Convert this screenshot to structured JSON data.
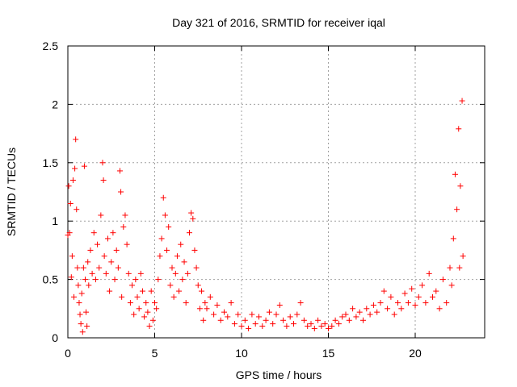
{
  "chart_data": {
    "type": "scatter",
    "title": "Day 321 of 2016, SRMTID for receiver iqal",
    "xlabel": "GPS time / hours",
    "ylabel": "SRMTID / TECUs",
    "xlim": [
      0,
      24
    ],
    "ylim": [
      0,
      2.5
    ],
    "x_ticks": [
      0,
      5,
      10,
      15,
      20
    ],
    "x_tick_labels": [
      "0",
      "5",
      "10",
      "15",
      "20"
    ],
    "y_ticks": [
      0,
      0.5,
      1,
      1.5,
      2,
      2.5
    ],
    "y_tick_labels": [
      "0",
      "0.5",
      "1",
      "1.5",
      "2",
      "2.5"
    ],
    "grid": true,
    "marker": "+",
    "color": "#ff0000",
    "series": [
      {
        "name": "SRMTID",
        "points": [
          [
            0.0,
            0.88
          ],
          [
            0.05,
            1.3
          ],
          [
            0.1,
            0.9
          ],
          [
            0.15,
            1.15
          ],
          [
            0.2,
            0.52
          ],
          [
            0.25,
            0.7
          ],
          [
            0.3,
            1.35
          ],
          [
            0.35,
            0.35
          ],
          [
            0.4,
            1.45
          ],
          [
            0.45,
            1.7
          ],
          [
            0.5,
            1.1
          ],
          [
            0.55,
            0.6
          ],
          [
            0.6,
            0.45
          ],
          [
            0.65,
            0.3
          ],
          [
            0.7,
            0.2
          ],
          [
            0.75,
            0.12
          ],
          [
            0.8,
            0.38
          ],
          [
            0.85,
            0.05
          ],
          [
            0.9,
            0.6
          ],
          [
            0.95,
            1.47
          ],
          [
            1.0,
            0.5
          ],
          [
            1.05,
            0.22
          ],
          [
            1.1,
            0.1
          ],
          [
            1.15,
            0.65
          ],
          [
            1.2,
            0.45
          ],
          [
            1.3,
            0.75
          ],
          [
            1.4,
            0.55
          ],
          [
            1.5,
            0.9
          ],
          [
            1.6,
            0.5
          ],
          [
            1.7,
            0.8
          ],
          [
            1.8,
            0.6
          ],
          [
            1.9,
            1.05
          ],
          [
            2.0,
            1.5
          ],
          [
            2.05,
            1.35
          ],
          [
            2.1,
            0.7
          ],
          [
            2.2,
            0.55
          ],
          [
            2.3,
            0.85
          ],
          [
            2.4,
            0.4
          ],
          [
            2.5,
            0.65
          ],
          [
            2.6,
            0.9
          ],
          [
            2.7,
            0.5
          ],
          [
            2.8,
            0.75
          ],
          [
            2.9,
            0.6
          ],
          [
            3.0,
            1.43
          ],
          [
            3.05,
            1.25
          ],
          [
            3.1,
            0.35
          ],
          [
            3.2,
            0.95
          ],
          [
            3.3,
            1.05
          ],
          [
            3.4,
            0.8
          ],
          [
            3.5,
            0.55
          ],
          [
            3.6,
            0.3
          ],
          [
            3.7,
            0.45
          ],
          [
            3.8,
            0.2
          ],
          [
            3.9,
            0.5
          ],
          [
            4.0,
            0.35
          ],
          [
            4.1,
            0.25
          ],
          [
            4.2,
            0.55
          ],
          [
            4.3,
            0.4
          ],
          [
            4.4,
            0.18
          ],
          [
            4.5,
            0.3
          ],
          [
            4.6,
            0.22
          ],
          [
            4.7,
            0.1
          ],
          [
            4.8,
            0.4
          ],
          [
            4.9,
            0.15
          ],
          [
            5.0,
            0.3
          ],
          [
            5.1,
            0.25
          ],
          [
            5.2,
            0.5
          ],
          [
            5.3,
            0.7
          ],
          [
            5.4,
            0.85
          ],
          [
            5.5,
            1.2
          ],
          [
            5.6,
            1.05
          ],
          [
            5.7,
            0.75
          ],
          [
            5.8,
            0.95
          ],
          [
            5.9,
            0.45
          ],
          [
            6.0,
            0.6
          ],
          [
            6.1,
            0.35
          ],
          [
            6.2,
            0.55
          ],
          [
            6.3,
            0.7
          ],
          [
            6.4,
            0.4
          ],
          [
            6.5,
            0.8
          ],
          [
            6.6,
            0.5
          ],
          [
            6.7,
            0.65
          ],
          [
            6.8,
            0.3
          ],
          [
            6.9,
            0.55
          ],
          [
            7.0,
            0.9
          ],
          [
            7.1,
            1.07
          ],
          [
            7.2,
            1.02
          ],
          [
            7.3,
            0.75
          ],
          [
            7.4,
            0.6
          ],
          [
            7.5,
            0.45
          ],
          [
            7.6,
            0.25
          ],
          [
            7.7,
            0.4
          ],
          [
            7.8,
            0.15
          ],
          [
            7.9,
            0.3
          ],
          [
            8.0,
            0.25
          ],
          [
            8.2,
            0.35
          ],
          [
            8.4,
            0.2
          ],
          [
            8.6,
            0.28
          ],
          [
            8.8,
            0.15
          ],
          [
            9.0,
            0.22
          ],
          [
            9.2,
            0.18
          ],
          [
            9.4,
            0.3
          ],
          [
            9.6,
            0.12
          ],
          [
            9.8,
            0.2
          ],
          [
            10.0,
            0.1
          ],
          [
            10.2,
            0.15
          ],
          [
            10.4,
            0.08
          ],
          [
            10.6,
            0.2
          ],
          [
            10.8,
            0.12
          ],
          [
            11.0,
            0.18
          ],
          [
            11.2,
            0.1
          ],
          [
            11.4,
            0.15
          ],
          [
            11.6,
            0.22
          ],
          [
            11.8,
            0.12
          ],
          [
            12.0,
            0.2
          ],
          [
            12.2,
            0.28
          ],
          [
            12.4,
            0.15
          ],
          [
            12.6,
            0.1
          ],
          [
            12.8,
            0.18
          ],
          [
            13.0,
            0.12
          ],
          [
            13.2,
            0.2
          ],
          [
            13.4,
            0.3
          ],
          [
            13.6,
            0.15
          ],
          [
            13.8,
            0.1
          ],
          [
            14.0,
            0.12
          ],
          [
            14.2,
            0.08
          ],
          [
            14.4,
            0.15
          ],
          [
            14.6,
            0.1
          ],
          [
            14.8,
            0.12
          ],
          [
            15.0,
            0.08
          ],
          [
            15.2,
            0.1
          ],
          [
            15.4,
            0.15
          ],
          [
            15.6,
            0.12
          ],
          [
            15.8,
            0.18
          ],
          [
            16.0,
            0.2
          ],
          [
            16.2,
            0.15
          ],
          [
            16.4,
            0.25
          ],
          [
            16.6,
            0.18
          ],
          [
            16.8,
            0.22
          ],
          [
            17.0,
            0.15
          ],
          [
            17.2,
            0.25
          ],
          [
            17.4,
            0.2
          ],
          [
            17.6,
            0.28
          ],
          [
            17.8,
            0.22
          ],
          [
            18.0,
            0.3
          ],
          [
            18.2,
            0.4
          ],
          [
            18.4,
            0.25
          ],
          [
            18.6,
            0.35
          ],
          [
            18.8,
            0.2
          ],
          [
            19.0,
            0.3
          ],
          [
            19.2,
            0.25
          ],
          [
            19.4,
            0.38
          ],
          [
            19.6,
            0.3
          ],
          [
            19.8,
            0.42
          ],
          [
            20.0,
            0.28
          ],
          [
            20.2,
            0.35
          ],
          [
            20.4,
            0.45
          ],
          [
            20.6,
            0.3
          ],
          [
            20.8,
            0.55
          ],
          [
            21.0,
            0.35
          ],
          [
            21.2,
            0.4
          ],
          [
            21.4,
            0.25
          ],
          [
            21.6,
            0.5
          ],
          [
            21.8,
            0.3
          ],
          [
            22.0,
            0.6
          ],
          [
            22.1,
            0.45
          ],
          [
            22.2,
            0.85
          ],
          [
            22.3,
            1.4
          ],
          [
            22.4,
            1.1
          ],
          [
            22.5,
            1.79
          ],
          [
            22.55,
            0.6
          ],
          [
            22.6,
            1.3
          ],
          [
            22.7,
            2.03
          ],
          [
            22.75,
            0.7
          ]
        ]
      }
    ]
  }
}
